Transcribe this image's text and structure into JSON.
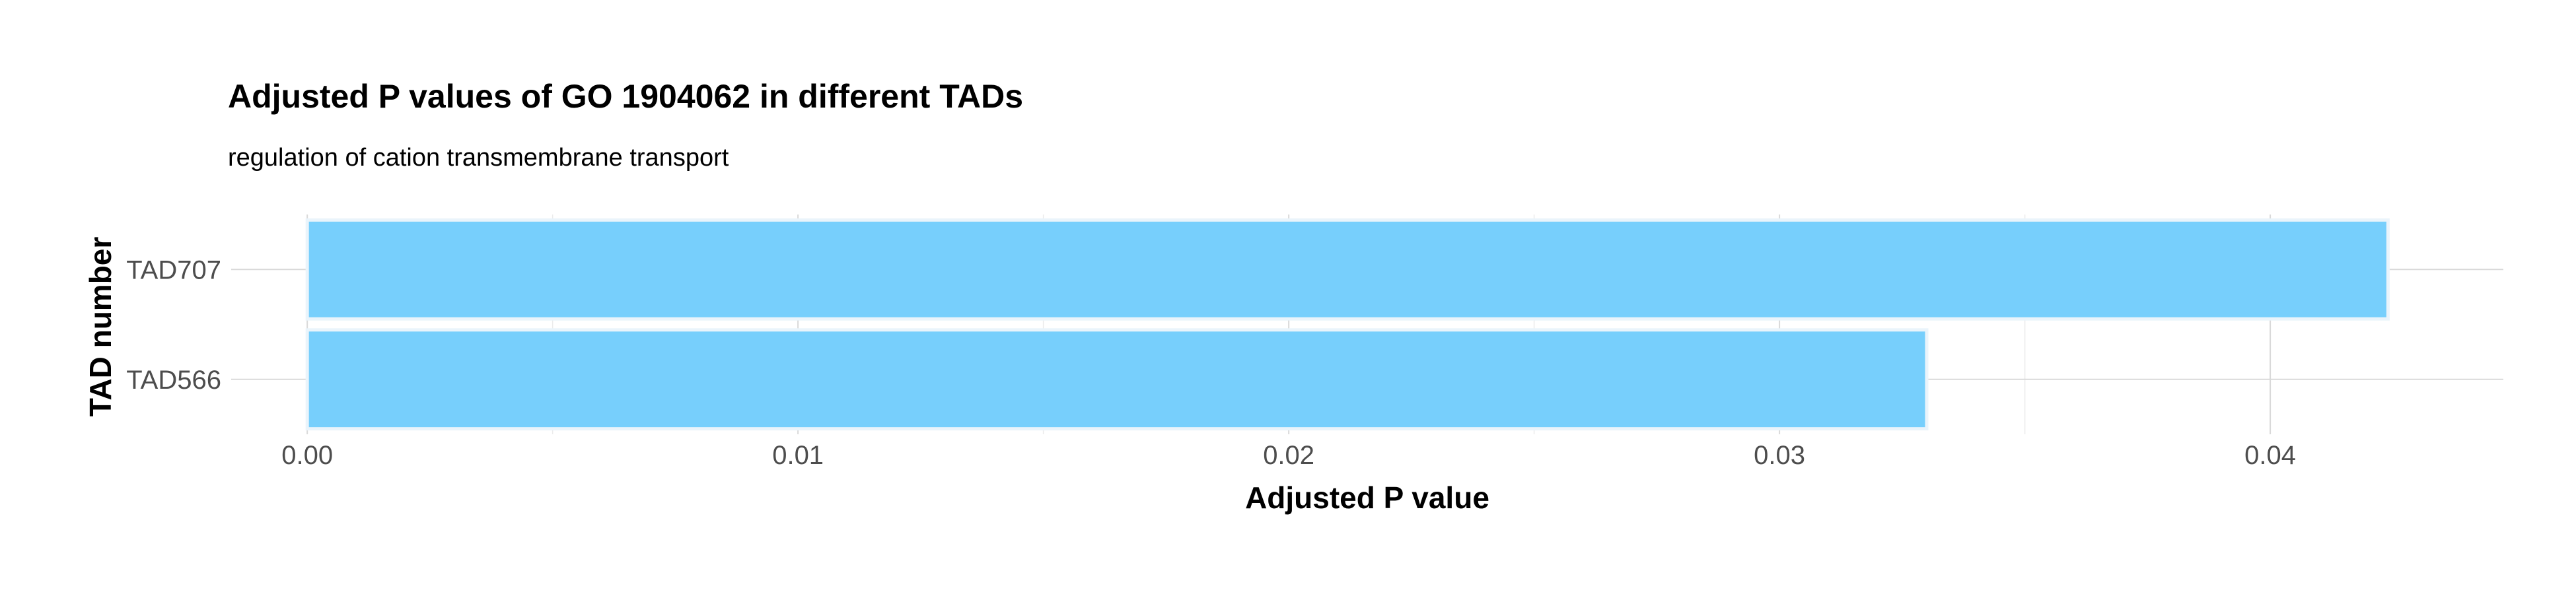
{
  "chart_data": {
    "type": "bar",
    "orientation": "horizontal",
    "title": "Adjusted P values of GO 1904062 in different TADs",
    "subtitle": "regulation of cation transmembrane transport",
    "xlabel": "Adjusted P value",
    "ylabel": "TAD number",
    "categories": [
      "TAD707",
      "TAD566"
    ],
    "values": [
      0.0424,
      0.033
    ],
    "xlim": [
      -0.00155,
      0.04475
    ],
    "xticks": [
      0.0,
      0.01,
      0.02,
      0.03,
      0.04
    ],
    "xtick_labels": [
      "0.00",
      "0.01",
      "0.02",
      "0.03",
      "0.04"
    ],
    "bar_color": "#74cefc",
    "grid": true,
    "legend": "none"
  }
}
